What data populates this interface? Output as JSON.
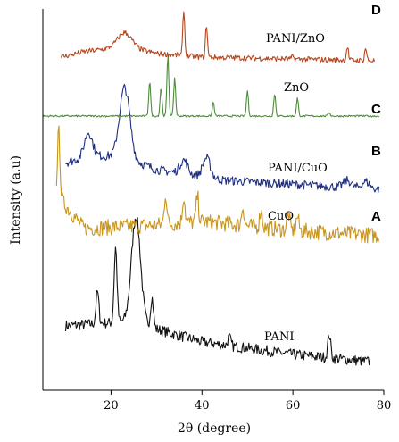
{
  "chart_data": {
    "type": "line",
    "xlabel": "2θ (degree)",
    "ylabel": "Intensity (a.u)",
    "xlim": [
      5,
      80
    ],
    "xticks": [
      20,
      40,
      60,
      80
    ],
    "y_ticks_shown": false,
    "grid": false,
    "legend": "none (inline labels next to each trace)",
    "series": [
      {
        "name": "PANI",
        "panel": "",
        "color": "#111111",
        "x_range": [
          10,
          77
        ],
        "peaks": [
          {
            "x": 17,
            "height": 0.3
          },
          {
            "x": 21,
            "height": 0.7
          },
          {
            "x": 25.5,
            "height": 1.0
          },
          {
            "x": 29,
            "height": 0.28
          },
          {
            "x": 46,
            "height": 0.08
          },
          {
            "x": 68,
            "height": 0.22
          }
        ]
      },
      {
        "name": "CuO",
        "panel": "A",
        "color": "#c9951b",
        "x_range": [
          8,
          79
        ],
        "peaks": [
          {
            "x": 8.5,
            "height": 1.0
          },
          {
            "x": 32,
            "height": 0.48
          },
          {
            "x": 36,
            "height": 0.42
          },
          {
            "x": 39,
            "height": 0.4
          },
          {
            "x": 49,
            "height": 0.3
          },
          {
            "x": 53,
            "height": 0.28
          },
          {
            "x": 59,
            "height": 0.25
          },
          {
            "x": 61,
            "height": 0.22
          }
        ]
      },
      {
        "name": "PANI/CuO",
        "panel": "B",
        "color": "#1f2f80",
        "x_range": [
          10,
          79
        ],
        "peaks": [
          {
            "x": 15,
            "height": 0.35
          },
          {
            "x": 23,
            "height": 1.0
          },
          {
            "x": 36,
            "height": 0.2
          },
          {
            "x": 41,
            "height": 0.28
          },
          {
            "x": 72,
            "height": 0.1
          },
          {
            "x": 76,
            "height": 0.1
          }
        ]
      },
      {
        "name": "ZnO",
        "panel": "C",
        "color": "#4c8c3a",
        "x_range": [
          5,
          79
        ],
        "peaks": [
          {
            "x": 28.5,
            "height": 0.55
          },
          {
            "x": 31,
            "height": 0.45
          },
          {
            "x": 32.5,
            "height": 0.95
          },
          {
            "x": 34,
            "height": 0.6
          },
          {
            "x": 42.5,
            "height": 0.22
          },
          {
            "x": 50,
            "height": 0.4
          },
          {
            "x": 56,
            "height": 0.35
          },
          {
            "x": 61,
            "height": 0.28
          },
          {
            "x": 68,
            "height": 0.06
          }
        ]
      },
      {
        "name": "PANI/ZnO",
        "panel": "D",
        "color": "#b5471e",
        "x_range": [
          9,
          78
        ],
        "peaks": [
          {
            "x": 23,
            "height": 0.3
          },
          {
            "x": 36,
            "height": 1.0
          },
          {
            "x": 41,
            "height": 0.7
          },
          {
            "x": 60,
            "height": 0.06
          },
          {
            "x": 72,
            "height": 0.3
          },
          {
            "x": 76,
            "height": 0.28
          }
        ]
      }
    ]
  }
}
